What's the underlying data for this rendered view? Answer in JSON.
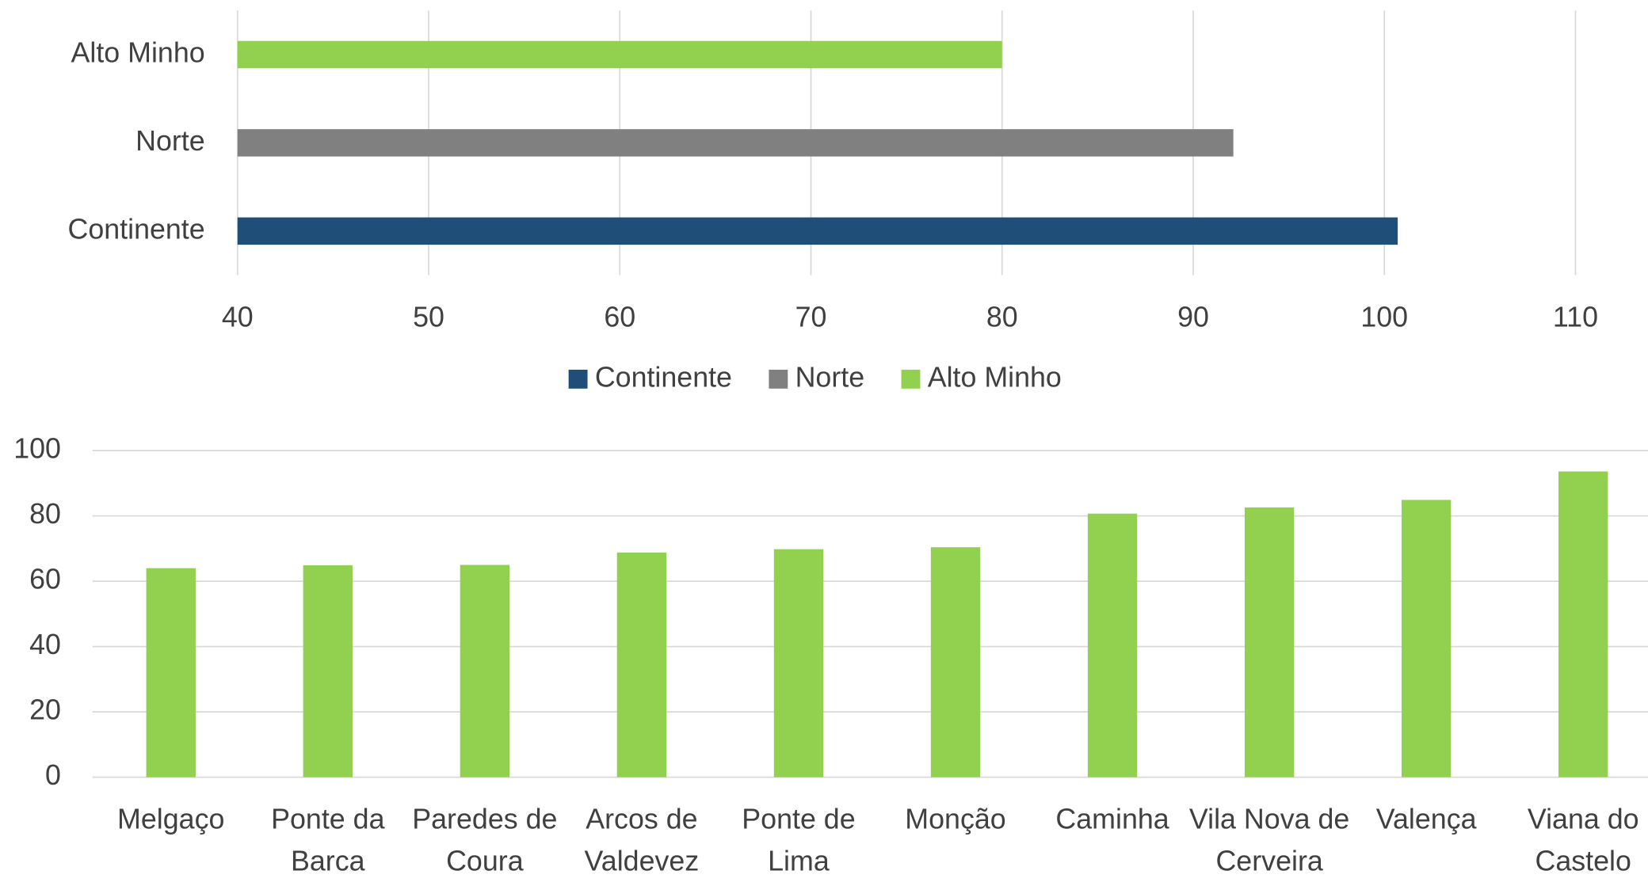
{
  "chart_data": [
    {
      "type": "bar",
      "orientation": "horizontal",
      "categories": [
        "Continente",
        "Norte",
        "Alto Minho"
      ],
      "series": [
        {
          "name": "Continente",
          "color": "#1f4e79",
          "values": [
            100.7,
            null,
            null
          ]
        },
        {
          "name": "Norte",
          "color": "#808080",
          "values": [
            null,
            92.1,
            null
          ]
        },
        {
          "name": "Alto Minho",
          "color": "#92d050",
          "values": [
            null,
            null,
            80
          ]
        }
      ],
      "xlim": [
        40,
        110
      ],
      "xticks": [
        40,
        50,
        60,
        70,
        80,
        90,
        100,
        110
      ],
      "grid": true,
      "legend": "bottom"
    },
    {
      "type": "bar",
      "categories": [
        "Melgaço",
        "Ponte da Barca",
        "Paredes de Coura",
        "Arcos de Valdevez",
        "Ponte de Lima",
        "Monção",
        "Caminha",
        "Vila Nova de Cerveira",
        "Valença",
        "Viana do Castelo"
      ],
      "values": [
        64,
        64.9,
        65,
        68.8,
        69.8,
        70.4,
        80.7,
        82.6,
        84.9,
        93.6
      ],
      "color": "#92d050",
      "ylim": [
        0,
        100
      ],
      "yticks": [
        0,
        20,
        40,
        60,
        80,
        100
      ],
      "grid": true
    }
  ]
}
